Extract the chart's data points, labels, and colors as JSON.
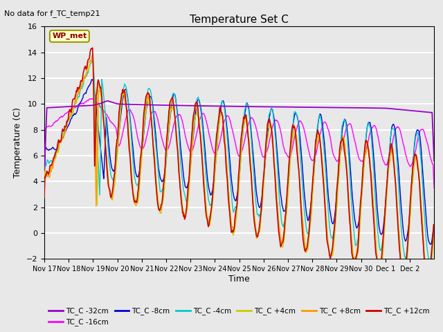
{
  "title": "Temperature Set C",
  "subtitle": "No data for f_TC_temp21",
  "ylabel": "Temperature (C)",
  "xlabel": "Time",
  "wp_met_label": "WP_met",
  "ylim": [
    -2,
    16
  ],
  "yticks": [
    -2,
    0,
    2,
    4,
    6,
    8,
    10,
    12,
    14,
    16
  ],
  "xtick_positions": [
    0,
    1,
    2,
    3,
    4,
    5,
    6,
    7,
    8,
    9,
    10,
    11,
    12,
    13,
    14,
    15
  ],
  "xtick_labels": [
    "Nov 17",
    "Nov 18",
    "Nov 19",
    "Nov 20",
    "Nov 21",
    "Nov 22",
    "Nov 23",
    "Nov 24",
    "Nov 25",
    "Nov 26",
    "Nov 27",
    "Nov 28",
    "Nov 29",
    "Nov 30",
    "Dec 1",
    "Dec 2"
  ],
  "series_colors": {
    "TC_C -32cm": "#9900cc",
    "TC_C -16cm": "#ff00ff",
    "TC_C -8cm": "#0000cc",
    "TC_C -4cm": "#00cccc",
    "TC_C +4cm": "#cccc00",
    "TC_C +8cm": "#ff9900",
    "TC_C +12cm": "#cc0000"
  },
  "bg_color": "#e8e8e8",
  "plot_bg_color": "#e8e8e8",
  "grid_color": "#ffffff",
  "n_days": 16,
  "legend_series_order": [
    "TC_C -32cm",
    "TC_C -16cm",
    "TC_C -8cm",
    "TC_C -4cm",
    "TC_C +4cm",
    "TC_C +8cm",
    "TC_C +12cm"
  ]
}
